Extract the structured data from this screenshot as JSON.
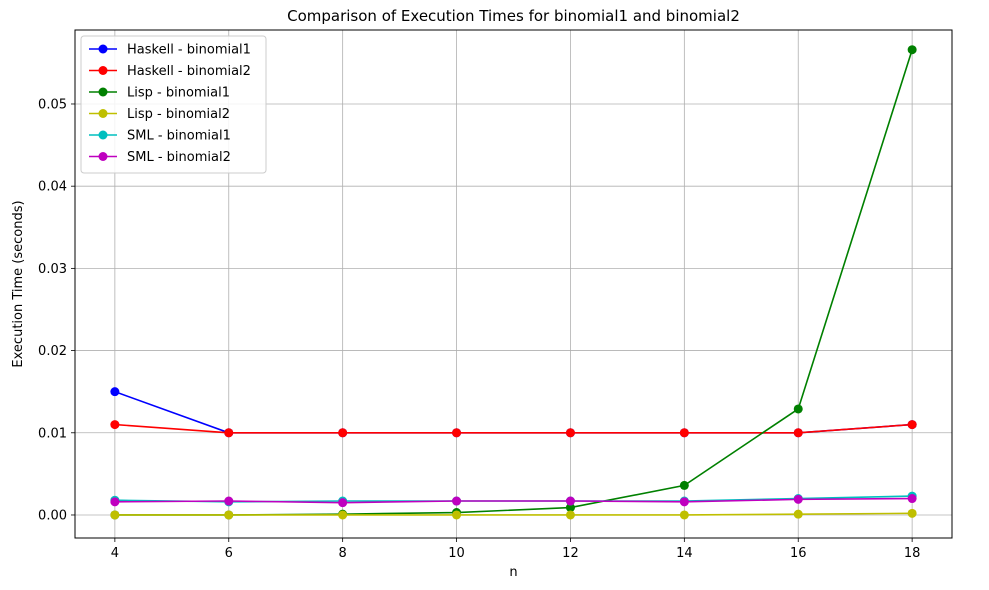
{
  "chart_data": {
    "type": "line",
    "title": "Comparison of Execution Times for binomial1 and binomial2",
    "xlabel": "n",
    "ylabel": "Execution Time (seconds)",
    "x": [
      4,
      6,
      8,
      10,
      12,
      14,
      16,
      18
    ],
    "xticks": [
      4,
      6,
      8,
      10,
      12,
      14,
      16,
      18
    ],
    "yticks": [
      0.0,
      0.01,
      0.02,
      0.03,
      0.04,
      0.05
    ],
    "ytick_labels": [
      "0.00",
      "0.01",
      "0.02",
      "0.03",
      "0.04",
      "0.05"
    ],
    "xlim": [
      3.3,
      18.7
    ],
    "ylim": [
      -0.0028,
      0.059
    ],
    "grid": true,
    "legend_position": "top-left",
    "series": [
      {
        "name": "Haskell - binomial1",
        "color": "#0000ff",
        "values": [
          0.015,
          0.01,
          0.01,
          0.01,
          0.01,
          0.01,
          0.01,
          0.011
        ]
      },
      {
        "name": "Haskell - binomial2",
        "color": "#ff0000",
        "values": [
          0.011,
          0.01,
          0.01,
          0.01,
          0.01,
          0.01,
          0.01,
          0.011
        ]
      },
      {
        "name": "Lisp - binomial1",
        "color": "#008000",
        "values": [
          0.0,
          0.0,
          0.0001,
          0.0003,
          0.0009,
          0.0036,
          0.0129,
          0.0566
        ]
      },
      {
        "name": "Lisp - binomial2",
        "color": "#bfbf00",
        "values": [
          0.0,
          0.0,
          0.0,
          0.0,
          0.0,
          0.0,
          0.0001,
          0.0002
        ]
      },
      {
        "name": "SML - binomial1",
        "color": "#00bfbf",
        "values": [
          0.0018,
          0.0016,
          0.0017,
          0.0017,
          0.0017,
          0.0017,
          0.002,
          0.0023
        ]
      },
      {
        "name": "SML - binomial2",
        "color": "#bf00bf",
        "values": [
          0.0016,
          0.0017,
          0.0015,
          0.0017,
          0.0017,
          0.0016,
          0.0019,
          0.002
        ]
      }
    ]
  }
}
